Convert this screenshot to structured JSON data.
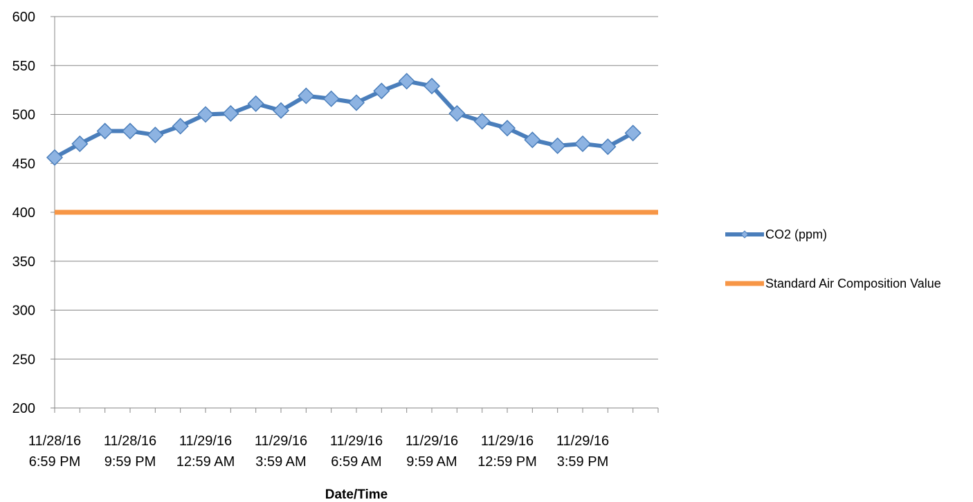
{
  "chart_data": {
    "type": "line",
    "xlabel": "Date/Time",
    "ylabel": "",
    "ylim": [
      200,
      600
    ],
    "yticks": [
      200,
      250,
      300,
      350,
      400,
      450,
      500,
      550,
      600
    ],
    "grid": "horizontal",
    "legend_position": "right",
    "x_tick_labels": [
      [
        "11/28/16",
        "6:59 PM"
      ],
      [
        "11/28/16",
        "9:59 PM"
      ],
      [
        "11/29/16",
        "12:59 AM"
      ],
      [
        "11/29/16",
        "3:59 AM"
      ],
      [
        "11/29/16",
        "6:59 AM"
      ],
      [
        "11/29/16",
        "9:59 AM"
      ],
      [
        "11/29/16",
        "12:59 PM"
      ],
      [
        "11/29/16",
        "3:59 PM"
      ]
    ],
    "series": [
      {
        "name": "CO2 (ppm)",
        "color": "#4a7ebb",
        "marker": "diamond",
        "marker_color": "#8db3e2",
        "values": [
          456,
          470,
          483,
          483,
          479,
          488,
          500,
          501,
          511,
          504,
          519,
          516,
          512,
          524,
          534,
          529,
          501,
          493,
          486,
          474,
          468,
          470,
          467,
          481
        ]
      },
      {
        "name": "Standard Air Composition Value",
        "color": "#f79646",
        "marker": "none",
        "values": [
          400,
          400,
          400,
          400,
          400,
          400,
          400,
          400,
          400,
          400,
          400,
          400,
          400,
          400,
          400,
          400,
          400,
          400,
          400,
          400,
          400,
          400,
          400,
          400
        ]
      }
    ]
  }
}
